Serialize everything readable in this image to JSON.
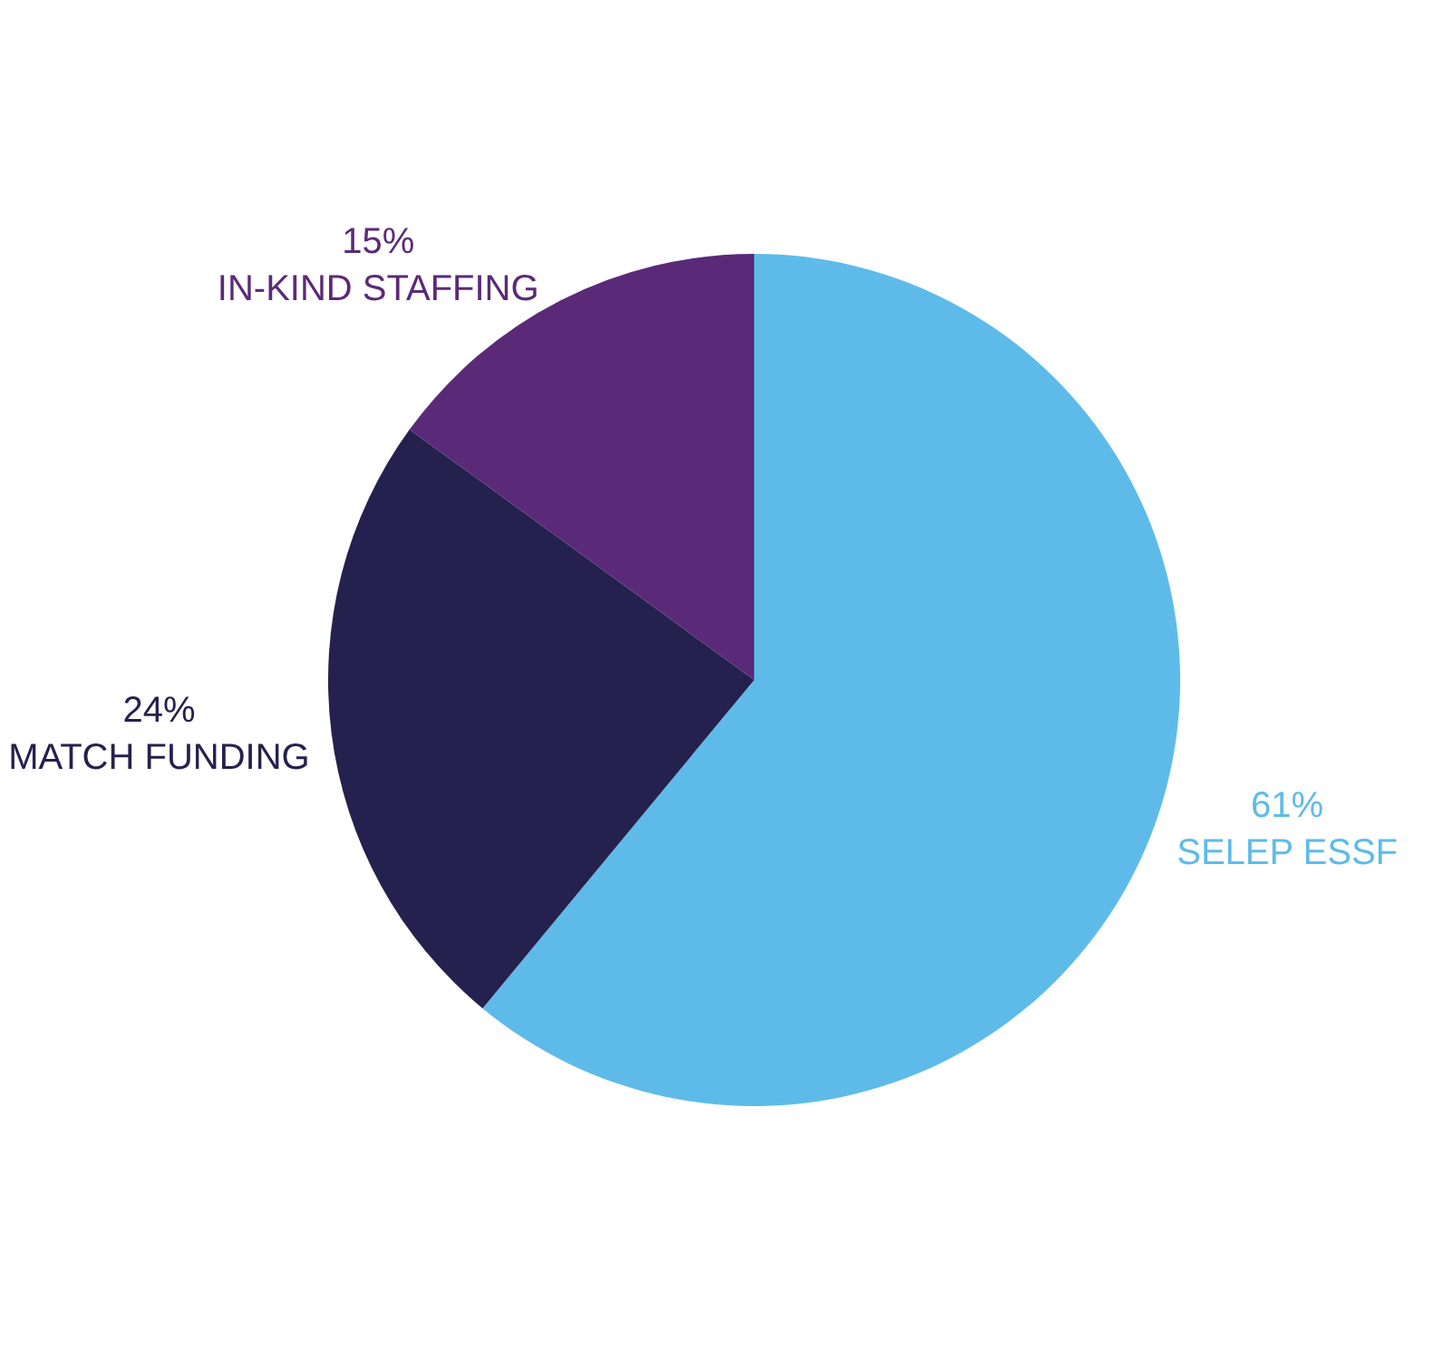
{
  "chart_data": {
    "type": "pie",
    "categories": [
      "SELEP ESSF",
      "MATCH FUNDING",
      "IN-KIND STAFFING"
    ],
    "values": [
      61,
      24,
      15
    ],
    "value_labels": [
      "61%",
      "24%",
      "15%"
    ],
    "colors": [
      "#5ebbe9",
      "#24214e",
      "#5a2a78"
    ]
  }
}
